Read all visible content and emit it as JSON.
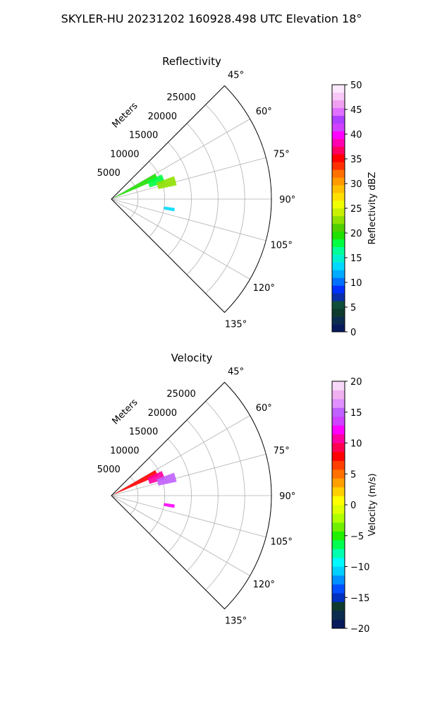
{
  "figure_title": "SKYLER-HU  20231202  160928.498 UTC Elevation 18°",
  "chart_data": [
    {
      "type": "polar-sector",
      "title": "Reflectivity",
      "radial_label": "Meters",
      "radial_ticks": [
        "5000",
        "10000",
        "15000",
        "20000",
        "25000"
      ],
      "radial_tick_values": [
        5000,
        10000,
        15000,
        20000,
        25000
      ],
      "rlim": [
        0,
        30000
      ],
      "theta_ticks": [
        "45°",
        "60°",
        "75°",
        "90°",
        "105°",
        "120°",
        "135°"
      ],
      "theta_tick_values": [
        45,
        60,
        75,
        90,
        105,
        120,
        135
      ],
      "theta_range": [
        45,
        135
      ],
      "grid": true,
      "colorbar": {
        "label": "Reflectivity dBZ",
        "ticks": [
          "0",
          "5",
          "10",
          "15",
          "20",
          "25",
          "30",
          "35",
          "40",
          "45",
          "50"
        ],
        "range": [
          0,
          50
        ],
        "colors": [
          "#071a5c",
          "#0b2c4f",
          "#0e3b2e",
          "#0f4e3a",
          "#0a2fa8",
          "#0030ff",
          "#0070ff",
          "#00aaff",
          "#00d8ff",
          "#00f0d0",
          "#00ff9a",
          "#00ff40",
          "#20e000",
          "#50d000",
          "#90e000",
          "#c8f000",
          "#f0ff00",
          "#ffe000",
          "#ffc000",
          "#ff9a00",
          "#ff7000",
          "#ff3000",
          "#ff0000",
          "#ff0060",
          "#ff00b0",
          "#ff00ff",
          "#d040ff",
          "#b040ff",
          "#e070ff",
          "#f0a0f0",
          "#f8c8f8",
          "#fce8fc"
        ]
      },
      "echo_regions": [
        {
          "range_m": [
            700,
            9500
          ],
          "azimuth_deg": [
            60,
            67
          ],
          "value": 20
        },
        {
          "range_m": [
            7500,
            10500
          ],
          "azimuth_deg": [
            64,
            73
          ],
          "value": 18
        },
        {
          "range_m": [
            9000,
            12500
          ],
          "azimuth_deg": [
            70,
            78
          ],
          "value": 22
        },
        {
          "range_m": [
            10000,
            12000
          ],
          "azimuth_deg": [
            98,
            101
          ],
          "value": 13
        }
      ]
    },
    {
      "type": "polar-sector",
      "title": "Velocity",
      "radial_label": "Meters",
      "radial_ticks": [
        "5000",
        "10000",
        "15000",
        "20000",
        "25000"
      ],
      "radial_tick_values": [
        5000,
        10000,
        15000,
        20000,
        25000
      ],
      "rlim": [
        0,
        30000
      ],
      "theta_ticks": [
        "45°",
        "60°",
        "75°",
        "90°",
        "105°",
        "120°",
        "135°"
      ],
      "theta_tick_values": [
        45,
        60,
        75,
        90,
        105,
        120,
        135
      ],
      "theta_range": [
        45,
        135
      ],
      "grid": true,
      "colorbar": {
        "label": "Velocity (m/s)",
        "ticks": [
          "−20",
          "−15",
          "−10",
          "−5",
          "0",
          "5",
          "10",
          "15",
          "20"
        ],
        "range": [
          -20,
          20
        ],
        "colors": [
          "#071a5c",
          "#0b2c4f",
          "#0e3b2e",
          "#0030c0",
          "#0050ff",
          "#0090ff",
          "#00d0ff",
          "#00f8ff",
          "#00ffb0",
          "#00ff50",
          "#20f000",
          "#70f000",
          "#b0ff00",
          "#e0ff00",
          "#ffff00",
          "#ffd000",
          "#ffa000",
          "#ff7000",
          "#ff4000",
          "#ff0000",
          "#ff0050",
          "#ff00a0",
          "#ff00ff",
          "#d040ff",
          "#c060ff",
          "#e090ff",
          "#f0b0f0",
          "#f8d8f8"
        ]
      },
      "echo_regions": [
        {
          "range_m": [
            700,
            9500
          ],
          "azimuth_deg": [
            60,
            67
          ],
          "value": 8
        },
        {
          "range_m": [
            7500,
            10500
          ],
          "azimuth_deg": [
            64,
            73
          ],
          "value": 11
        },
        {
          "range_m": [
            9000,
            12500
          ],
          "azimuth_deg": [
            70,
            78
          ],
          "value": 15
        },
        {
          "range_m": [
            10000,
            12000
          ],
          "azimuth_deg": [
            98,
            101
          ],
          "value": 12
        }
      ]
    }
  ]
}
